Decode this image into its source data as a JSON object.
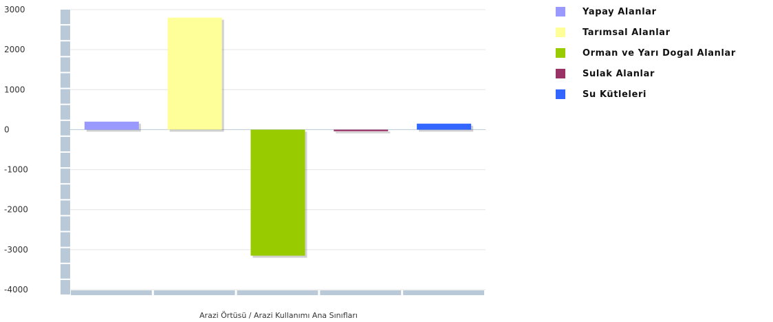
{
  "chart_data": {
    "type": "bar",
    "categories": [
      "Yapay Alanlar",
      "Tarımsal Alanlar",
      "Orman ve Yarı Dogal Alanlar",
      "Sulak Alanlar",
      "Su Kütleleri"
    ],
    "values": [
      200,
      2800,
      -3150,
      -40,
      150
    ],
    "colors": [
      "#9999ff",
      "#ffff99",
      "#99cc00",
      "#993366",
      "#3366ff"
    ],
    "xlabel": "Arazi Örtüsü / Arazi Kullanımı Ana Sınıfları",
    "ylabel": "",
    "ylim": [
      -4000,
      3000
    ],
    "yticks": [
      "3000",
      "2000",
      "1000",
      "0",
      "-1000",
      "-2000",
      "-3000",
      "-4000"
    ],
    "grid": true,
    "legend_position": "right"
  }
}
